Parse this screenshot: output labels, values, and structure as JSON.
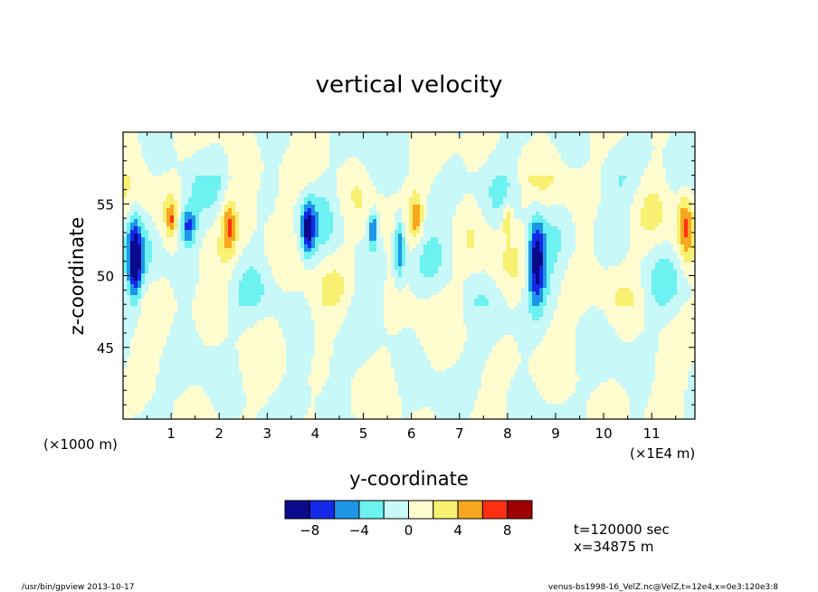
{
  "chart_data": {
    "type": "heatmap",
    "title": "vertical velocity",
    "xlabel": "y-coordinate",
    "ylabel": "z-coordinate",
    "x_unit_left": "(×1000 m)",
    "x_unit_right": "(×1E4 m)",
    "xlim": [
      0,
      11.9
    ],
    "ylim": [
      40,
      60
    ],
    "x_ticks": [
      "1",
      "2",
      "3",
      "4",
      "5",
      "6",
      "7",
      "8",
      "9",
      "10",
      "11"
    ],
    "x_tick_values": [
      1,
      2,
      3,
      4,
      5,
      6,
      7,
      8,
      9,
      10,
      11
    ],
    "y_ticks": [
      "45",
      "50",
      "55"
    ],
    "y_tick_values": [
      45,
      50,
      55
    ],
    "colorbar": {
      "levels": [
        -10,
        -8,
        -6,
        -4,
        -2,
        0,
        2,
        4,
        6,
        8,
        10
      ],
      "labels": [
        "−8",
        "−4",
        "0",
        "4",
        "8"
      ],
      "label_values": [
        -8,
        -4,
        0,
        4,
        8
      ],
      "colors": [
        "#0a0a8c",
        "#1428e8",
        "#1e96e6",
        "#6cf2f0",
        "#c8f8f8",
        "#fffcd0",
        "#f8f070",
        "#f8a820",
        "#ff3010",
        "#a00000"
      ]
    },
    "features": [
      {
        "y": 0.25,
        "z": 51.0,
        "value": -8.5,
        "wy": 0.14,
        "wz": 2.8
      },
      {
        "y": 1.35,
        "z": 53.5,
        "value": -7.0,
        "wy": 0.16,
        "wz": 1.4
      },
      {
        "y": 3.85,
        "z": 53.3,
        "value": -8.0,
        "wy": 0.13,
        "wz": 1.8
      },
      {
        "y": 5.2,
        "z": 53.3,
        "value": -6.5,
        "wy": 0.1,
        "wz": 1.2
      },
      {
        "y": 5.75,
        "z": 52.0,
        "value": -6.5,
        "wy": 0.11,
        "wz": 2.2
      },
      {
        "y": 8.6,
        "z": 51.0,
        "value": -9.0,
        "wy": 0.18,
        "wz": 3.0
      },
      {
        "y": 1.0,
        "z": 54.0,
        "value": 4.5,
        "wy": 0.1,
        "wz": 1.2
      },
      {
        "y": 2.2,
        "z": 53.5,
        "value": 5.0,
        "wy": 0.14,
        "wz": 1.8
      },
      {
        "y": 6.1,
        "z": 54.0,
        "value": 5.0,
        "wy": 0.12,
        "wz": 1.4
      },
      {
        "y": 8.0,
        "z": 54.0,
        "value": 4.5,
        "wy": 0.1,
        "wz": 1.2
      },
      {
        "y": 11.7,
        "z": 53.5,
        "value": 5.5,
        "wy": 0.16,
        "wz": 2.4
      }
    ]
  },
  "info": {
    "time": "t=120000 sec",
    "position": "x=34875 m"
  },
  "footer": {
    "left": "/usr/bin/gpview  2013-10-17",
    "right": "venus-bs1998-16_VelZ.nc@VelZ,t=12e4,x=0e3:120e3:8"
  }
}
